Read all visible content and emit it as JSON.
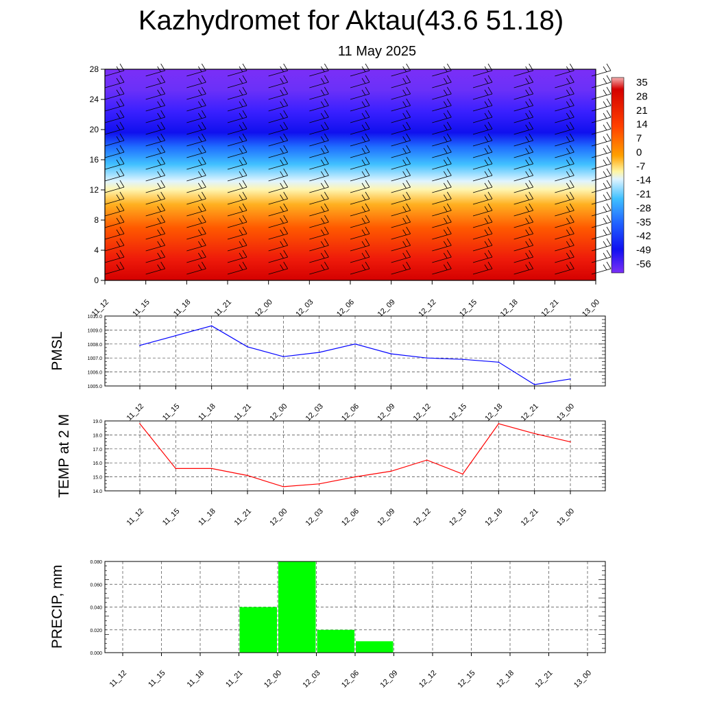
{
  "header": {
    "title": "Kazhydromet for Aktau(43.6 51.18)",
    "subtitle": "11 May 2025"
  },
  "chart_data": [
    {
      "type": "heatmap",
      "y_ticks": [
        "0",
        "4",
        "8",
        "12",
        "16",
        "20",
        "24",
        "28"
      ],
      "ylim": [
        0,
        28
      ],
      "x_ticks": [
        "11_12",
        "11_15",
        "11_18",
        "11_21",
        "12_00",
        "12_03",
        "12_06",
        "12_09",
        "12_12",
        "12_15",
        "12_18",
        "12_21",
        "13_00"
      ],
      "colorbar_labels": [
        "35",
        "28",
        "21",
        "14",
        "7",
        "0",
        "-7",
        "-14",
        "-21",
        "-28",
        "-35",
        "-42",
        "-49",
        "-56"
      ],
      "colors": {
        "bottom": "#e01010",
        "mid_low": "#ff7a00",
        "mid": "#fff2a0",
        "cold": "#50c8ff",
        "colder": "#2a2aff",
        "top": "#7b2ff7"
      }
    },
    {
      "type": "line",
      "ylabel": "PMSL",
      "x": [
        "11_12",
        "11_15",
        "11_18",
        "11_21",
        "12_00",
        "12_03",
        "12_06",
        "12_09",
        "12_12",
        "12_15",
        "12_18",
        "12_21",
        "13_00"
      ],
      "values": [
        1007.9,
        1008.6,
        1009.3,
        1007.8,
        1007.1,
        1007.4,
        1008.0,
        1007.3,
        1007.0,
        1006.9,
        1006.7,
        1005.1,
        1005.5
      ],
      "ylim": [
        1005.0,
        1010.0
      ],
      "y_ticks": [
        "1005.0",
        "1006.0",
        "1007.0",
        "1008.0",
        "1009.0",
        "1010.0"
      ],
      "color": "#0000ff"
    },
    {
      "type": "line",
      "ylabel": "TEMP at 2 M",
      "x": [
        "11_12",
        "11_15",
        "11_18",
        "11_21",
        "12_00",
        "12_03",
        "12_06",
        "12_09",
        "12_12",
        "12_15",
        "12_18",
        "12_21",
        "13_00"
      ],
      "values": [
        18.8,
        15.6,
        15.6,
        15.1,
        14.3,
        14.5,
        15.0,
        15.4,
        16.2,
        15.2,
        18.8,
        18.1,
        17.5
      ],
      "ylim": [
        14.0,
        19.0
      ],
      "y_ticks": [
        "14.0",
        "15.0",
        "16.0",
        "17.0",
        "18.0",
        "19.0"
      ],
      "color": "#ff0000"
    },
    {
      "type": "bar",
      "ylabel": "PRECIP, mm",
      "categories": [
        "11_12",
        "11_15",
        "11_18",
        "11_21",
        "12_00",
        "12_03",
        "12_06",
        "12_09",
        "12_12",
        "12_15",
        "12_18",
        "12_21",
        "13_00"
      ],
      "values": [
        0,
        0,
        0,
        0,
        0.04,
        0.08,
        0.02,
        0.01,
        0,
        0,
        0,
        0,
        0
      ],
      "ylim": [
        0,
        0.08
      ],
      "y_ticks": [
        "0.000",
        "0.020",
        "0.040",
        "0.060",
        "0.080"
      ],
      "color": "#00ff00"
    }
  ]
}
